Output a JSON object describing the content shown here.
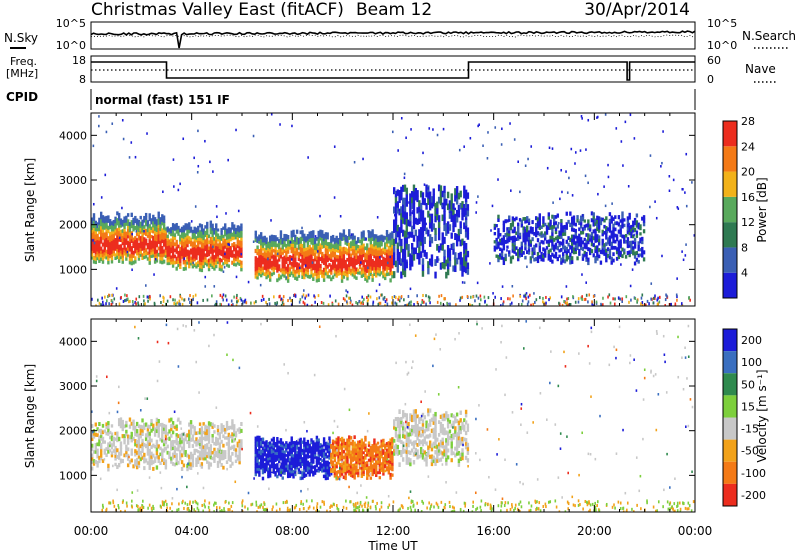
{
  "header": {
    "title": "Christmas Valley East (fitACF)",
    "beam": "Beam 12",
    "date": "30/Apr/2014"
  },
  "strip": {
    "nsky_label": "N.Sky",
    "nsearch_label": "N.Search",
    "noise_top_label": "10^5",
    "noise_bottom_label": "10^0",
    "freq_label": "Freq.",
    "freq_unit": "[MHz]",
    "freq_top": "18",
    "freq_bottom": "8",
    "nave_label": "Nave",
    "nave_top": "60",
    "nave_bottom": "0",
    "cpid_label": "CPID",
    "cpid_value": "normal (fast) 151 IF"
  },
  "chart_data": [
    {
      "type": "heatmap",
      "panel": "power",
      "ylabel": "Slant Range [km]",
      "xlabel": "",
      "ylim": [
        180,
        4500
      ],
      "y_ticks": [
        "1000",
        "2000",
        "3000",
        "4000"
      ],
      "x_ticks": [
        "00:00",
        "04:00",
        "08:00",
        "12:00",
        "16:00",
        "20:00",
        "00:00"
      ],
      "colorbar": {
        "label": "Power [dB]",
        "ticks": [
          "4",
          "8",
          "12",
          "16",
          "20",
          "24",
          "28"
        ],
        "colors": [
          "#1c1cd8",
          "#3a5fb4",
          "#2f7a52",
          "#59a95c",
          "#f2b21a",
          "#f47a16",
          "#ec2d1e"
        ]
      },
      "features": [
        {
          "t0": 0.0,
          "t1": 3.0,
          "r0": 1200,
          "r1": 2200,
          "level": "high"
        },
        {
          "t0": 3.0,
          "t1": 6.0,
          "r0": 1050,
          "r1": 2000,
          "level": "high"
        },
        {
          "t0": 6.5,
          "t1": 12.0,
          "r0": 800,
          "r1": 1800,
          "level": "high"
        },
        {
          "t0": 12.0,
          "t1": 15.0,
          "r0": 900,
          "r1": 2800,
          "level": "low"
        },
        {
          "t0": 16.0,
          "t1": 22.0,
          "r0": 1200,
          "r1": 2200,
          "level": "low"
        }
      ]
    },
    {
      "type": "heatmap",
      "panel": "velocity",
      "ylabel": "Slant Range [km]",
      "xlabel": "Time UT",
      "ylim": [
        180,
        4500
      ],
      "y_ticks": [
        "1000",
        "2000",
        "3000",
        "4000"
      ],
      "x_ticks": [
        "00:00",
        "04:00",
        "08:00",
        "12:00",
        "16:00",
        "20:00",
        "00:00"
      ],
      "colorbar": {
        "label": "Velocity [m s⁻¹]",
        "ticks": [
          "200",
          "100",
          "50",
          "15",
          "-15",
          "-50",
          "-100",
          "-200"
        ],
        "colors": [
          "#1c1cd8",
          "#3a6fc0",
          "#2f8a4e",
          "#7dcf3c",
          "#c8c8c8",
          "#f2a21a",
          "#f47a16",
          "#ec2d1e"
        ]
      },
      "features": [
        {
          "t0": 0.0,
          "t1": 6.0,
          "r0": 1200,
          "r1": 2200,
          "level": "near-zero"
        },
        {
          "t0": 6.5,
          "t1": 9.5,
          "r0": 1000,
          "r1": 1800,
          "level": "positive"
        },
        {
          "t0": 9.5,
          "t1": 12.0,
          "r0": 1000,
          "r1": 1800,
          "level": "negative"
        },
        {
          "t0": 12.0,
          "t1": 15.0,
          "r0": 1300,
          "r1": 2400,
          "level": "near-zero"
        }
      ]
    }
  ]
}
